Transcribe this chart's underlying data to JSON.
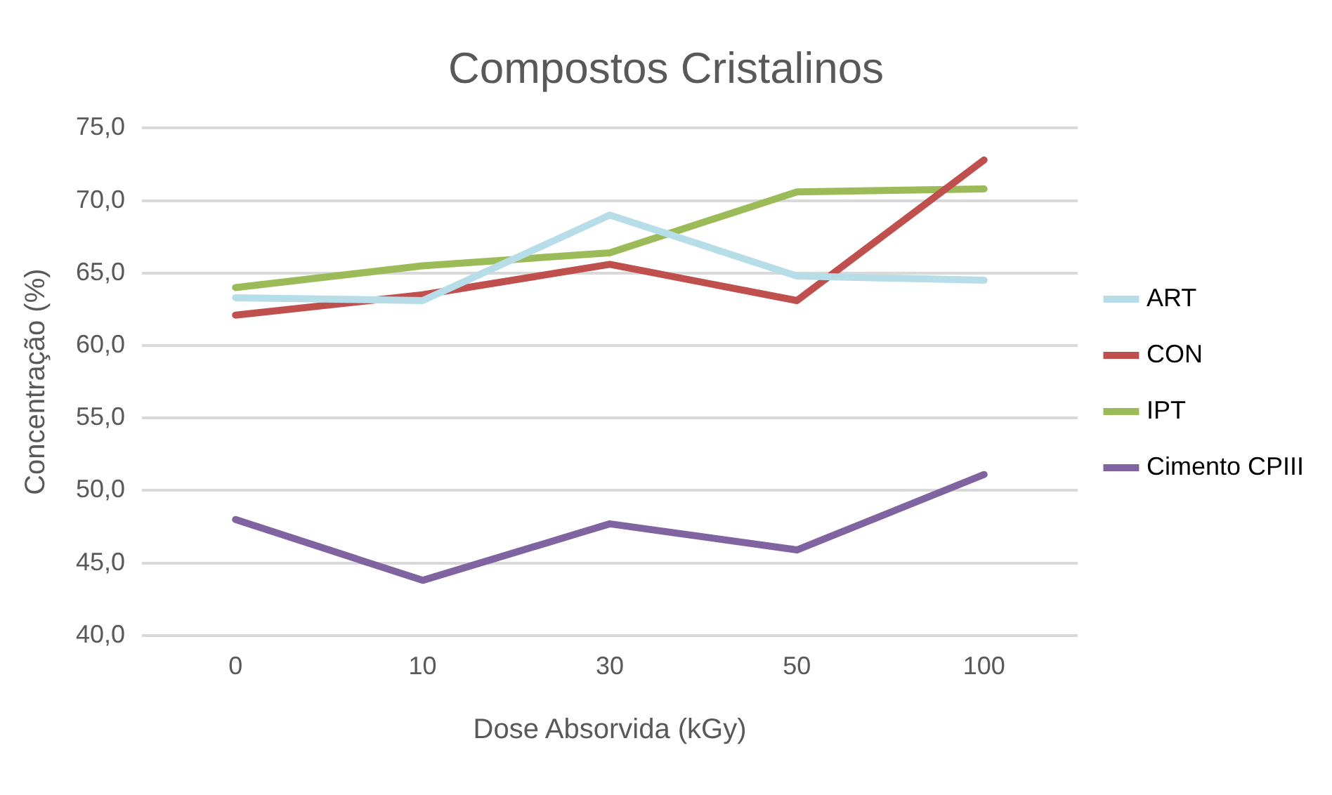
{
  "chart_data": {
    "type": "line",
    "title": "Compostos Cristalinos",
    "xlabel": "Dose Absorvida (kGy)",
    "ylabel": "Concentração (%)",
    "categories": [
      "0",
      "10",
      "30",
      "50",
      "100"
    ],
    "series": [
      {
        "name": "ART",
        "color": "#b7dde8",
        "values": [
          63.3,
          63.1,
          69.0,
          64.8,
          64.5
        ]
      },
      {
        "name": "CON",
        "color": "#c0504d",
        "values": [
          62.1,
          63.5,
          65.6,
          63.1,
          72.8
        ]
      },
      {
        "name": "IPT",
        "color": "#9bbb59",
        "values": [
          64.0,
          65.5,
          66.4,
          70.6,
          70.8
        ]
      },
      {
        "name": "Cimento CPIII",
        "color": "#8064a2",
        "values": [
          48.0,
          43.8,
          47.7,
          45.9,
          51.1
        ]
      }
    ],
    "ylim": [
      40,
      75
    ],
    "yticks": [
      {
        "value": 40,
        "label": "40,0"
      },
      {
        "value": 45,
        "label": "45,0"
      },
      {
        "value": 50,
        "label": "50,0"
      },
      {
        "value": 55,
        "label": "55,0"
      },
      {
        "value": 60,
        "label": "60,0"
      },
      {
        "value": 65,
        "label": "65,0"
      },
      {
        "value": 70,
        "label": "70,0"
      },
      {
        "value": 75,
        "label": "75,0"
      }
    ],
    "grid": "y",
    "legend": "right",
    "marker": "none",
    "line_style": "solid"
  }
}
